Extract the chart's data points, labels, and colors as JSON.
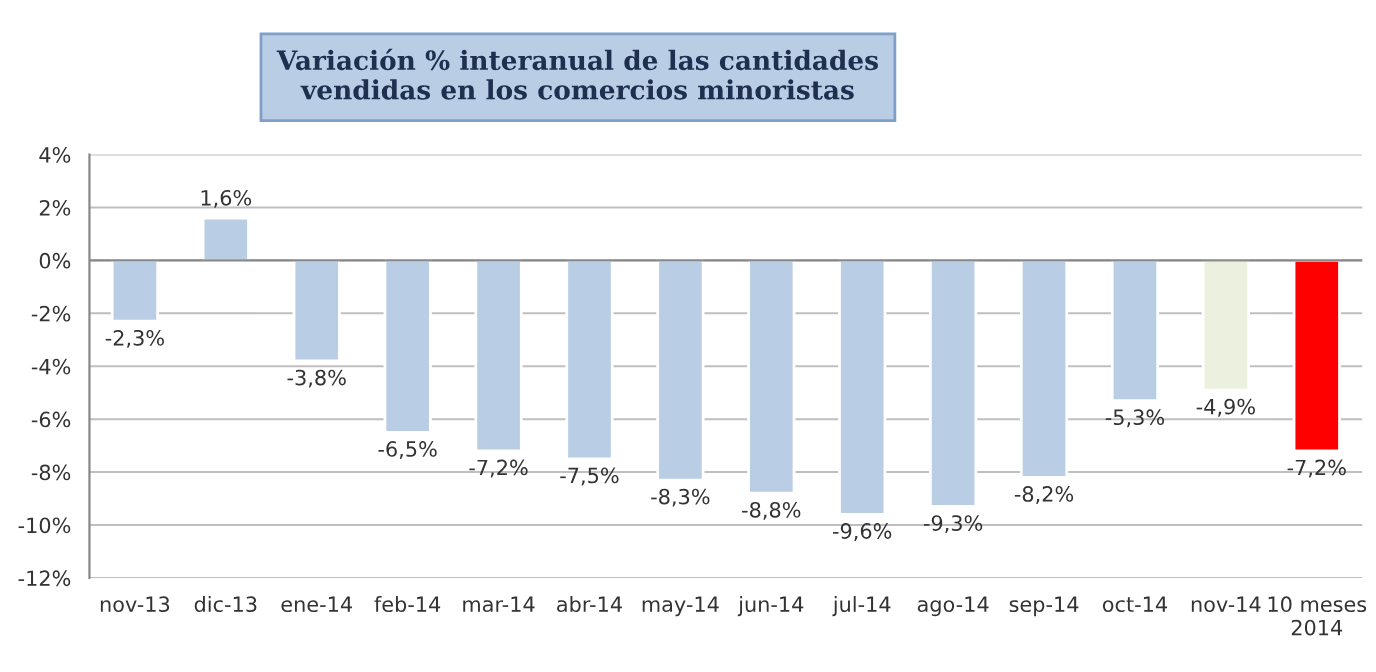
{
  "chart_data": {
    "type": "bar",
    "title": "Variación % interanual de las cantidades\nvendidas en los comercios minoristas",
    "categories": [
      "nov-13",
      "dic-13",
      "ene-14",
      "feb-14",
      "mar-14",
      "abr-14",
      "may-14",
      "jun-14",
      "jul-14",
      "ago-14",
      "sep-14",
      "oct-14",
      "nov-14",
      "10 meses\n2014"
    ],
    "values": [
      -2.3,
      1.6,
      -3.8,
      -6.5,
      -7.2,
      -7.5,
      -8.3,
      -8.8,
      -9.6,
      -9.3,
      -8.2,
      -5.3,
      -4.9,
      -7.2
    ],
    "value_labels": [
      "-2,3%",
      "1,6%",
      "-3,8%",
      "-6,5%",
      "-7,2%",
      "-7,5%",
      "-8,3%",
      "-8,8%",
      "-9,6%",
      "-9,3%",
      "-8,2%",
      "-5,3%",
      "-4,9%",
      "-7,2%"
    ],
    "colors": [
      "#b9cde5",
      "#b9cde5",
      "#b9cde5",
      "#b9cde5",
      "#b9cde5",
      "#b9cde5",
      "#b9cde5",
      "#b9cde5",
      "#b9cde5",
      "#b9cde5",
      "#b9cde5",
      "#b9cde5",
      "#ebf1de",
      "#ff0000"
    ],
    "ylim": [
      -12,
      4
    ],
    "yticks": [
      {
        "value": 4,
        "label": "4%"
      },
      {
        "value": 2,
        "label": "2%"
      },
      {
        "value": 0,
        "label": "0%"
      },
      {
        "value": -2,
        "label": "-2%"
      },
      {
        "value": -4,
        "label": "-4%"
      },
      {
        "value": -6,
        "label": "-6%"
      },
      {
        "value": -8,
        "label": "-8%"
      },
      {
        "value": -10,
        "label": "-10%"
      },
      {
        "value": -12,
        "label": "-12%"
      }
    ],
    "grid": "y"
  }
}
